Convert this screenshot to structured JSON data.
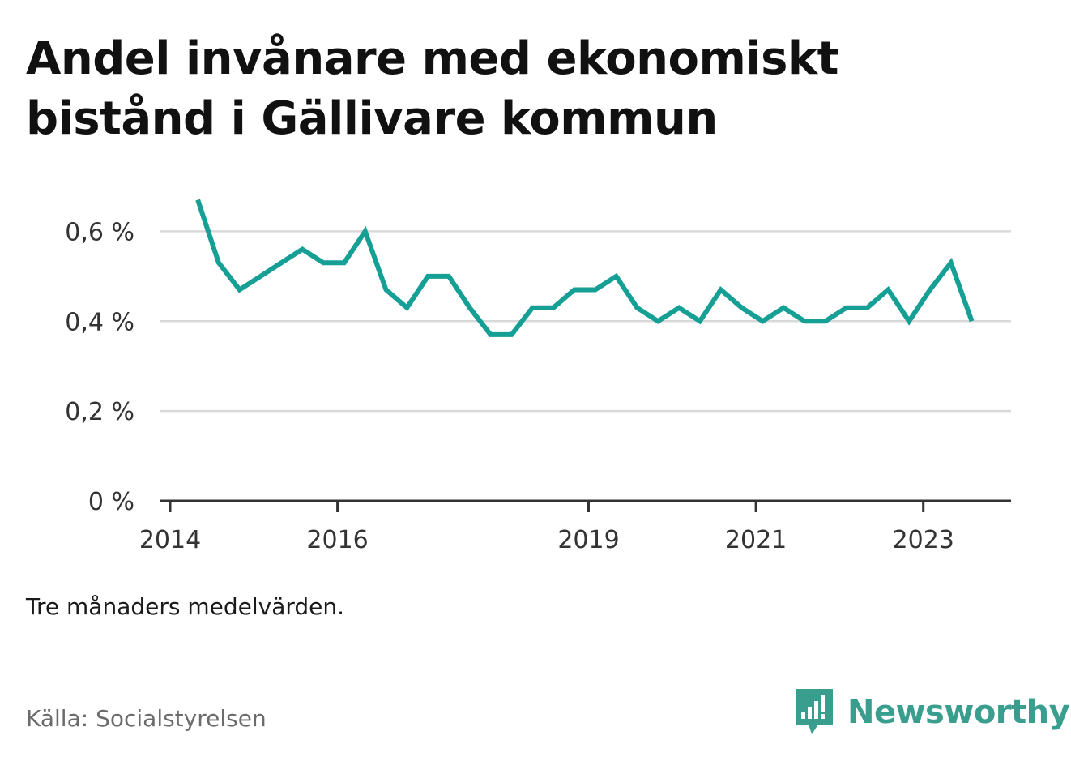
{
  "title": "Andel invånare med ekonomiskt bistånd i Gällivare kommun",
  "note": "Tre månaders medelvärden.",
  "source": "Källa: Socialstyrelsen",
  "brand": {
    "name": "Newsworthy",
    "icon": "newsworthy-logo-icon",
    "color": "#3a9e8f"
  },
  "chart_data": {
    "type": "line",
    "title": "Andel invånare med ekonomiskt bistånd i Gällivare kommun",
    "xlabel": "",
    "ylabel": "",
    "ylim": [
      0,
      0.7
    ],
    "xlim": [
      2014.0,
      2024.0
    ],
    "yticks": [
      0,
      0.2,
      0.4,
      0.6
    ],
    "ytick_labels": [
      "0 %",
      "0,2 %",
      "0,4 %",
      "0,6 %"
    ],
    "xticks": [
      2014,
      2016,
      2019,
      2021,
      2023
    ],
    "xtick_labels": [
      "2014",
      "2016",
      "2019",
      "2021",
      "2023"
    ],
    "grid": true,
    "line_color": "#16a095",
    "series": [
      {
        "x": [
          2014.33,
          2014.58,
          2014.83,
          2015.08,
          2015.33,
          2015.58,
          2015.83,
          2016.08,
          2016.33,
          2016.58,
          2016.83,
          2017.08,
          2017.33,
          2017.58,
          2017.83,
          2018.08,
          2018.33,
          2018.58,
          2018.83,
          2019.08,
          2019.33,
          2019.58,
          2019.83,
          2020.08,
          2020.33,
          2020.58,
          2020.83,
          2021.08,
          2021.33,
          2021.58,
          2021.83,
          2022.08,
          2022.33,
          2022.58,
          2022.83,
          2023.08,
          2023.33,
          2023.58
        ],
        "values": [
          0.67,
          0.53,
          0.47,
          0.5,
          0.53,
          0.56,
          0.53,
          0.53,
          0.6,
          0.47,
          0.43,
          0.5,
          0.5,
          0.43,
          0.37,
          0.37,
          0.43,
          0.43,
          0.47,
          0.47,
          0.5,
          0.43,
          0.4,
          0.43,
          0.4,
          0.47,
          0.43,
          0.4,
          0.43,
          0.4,
          0.4,
          0.43,
          0.43,
          0.47,
          0.4,
          0.47,
          0.53,
          0.4
        ]
      }
    ]
  }
}
